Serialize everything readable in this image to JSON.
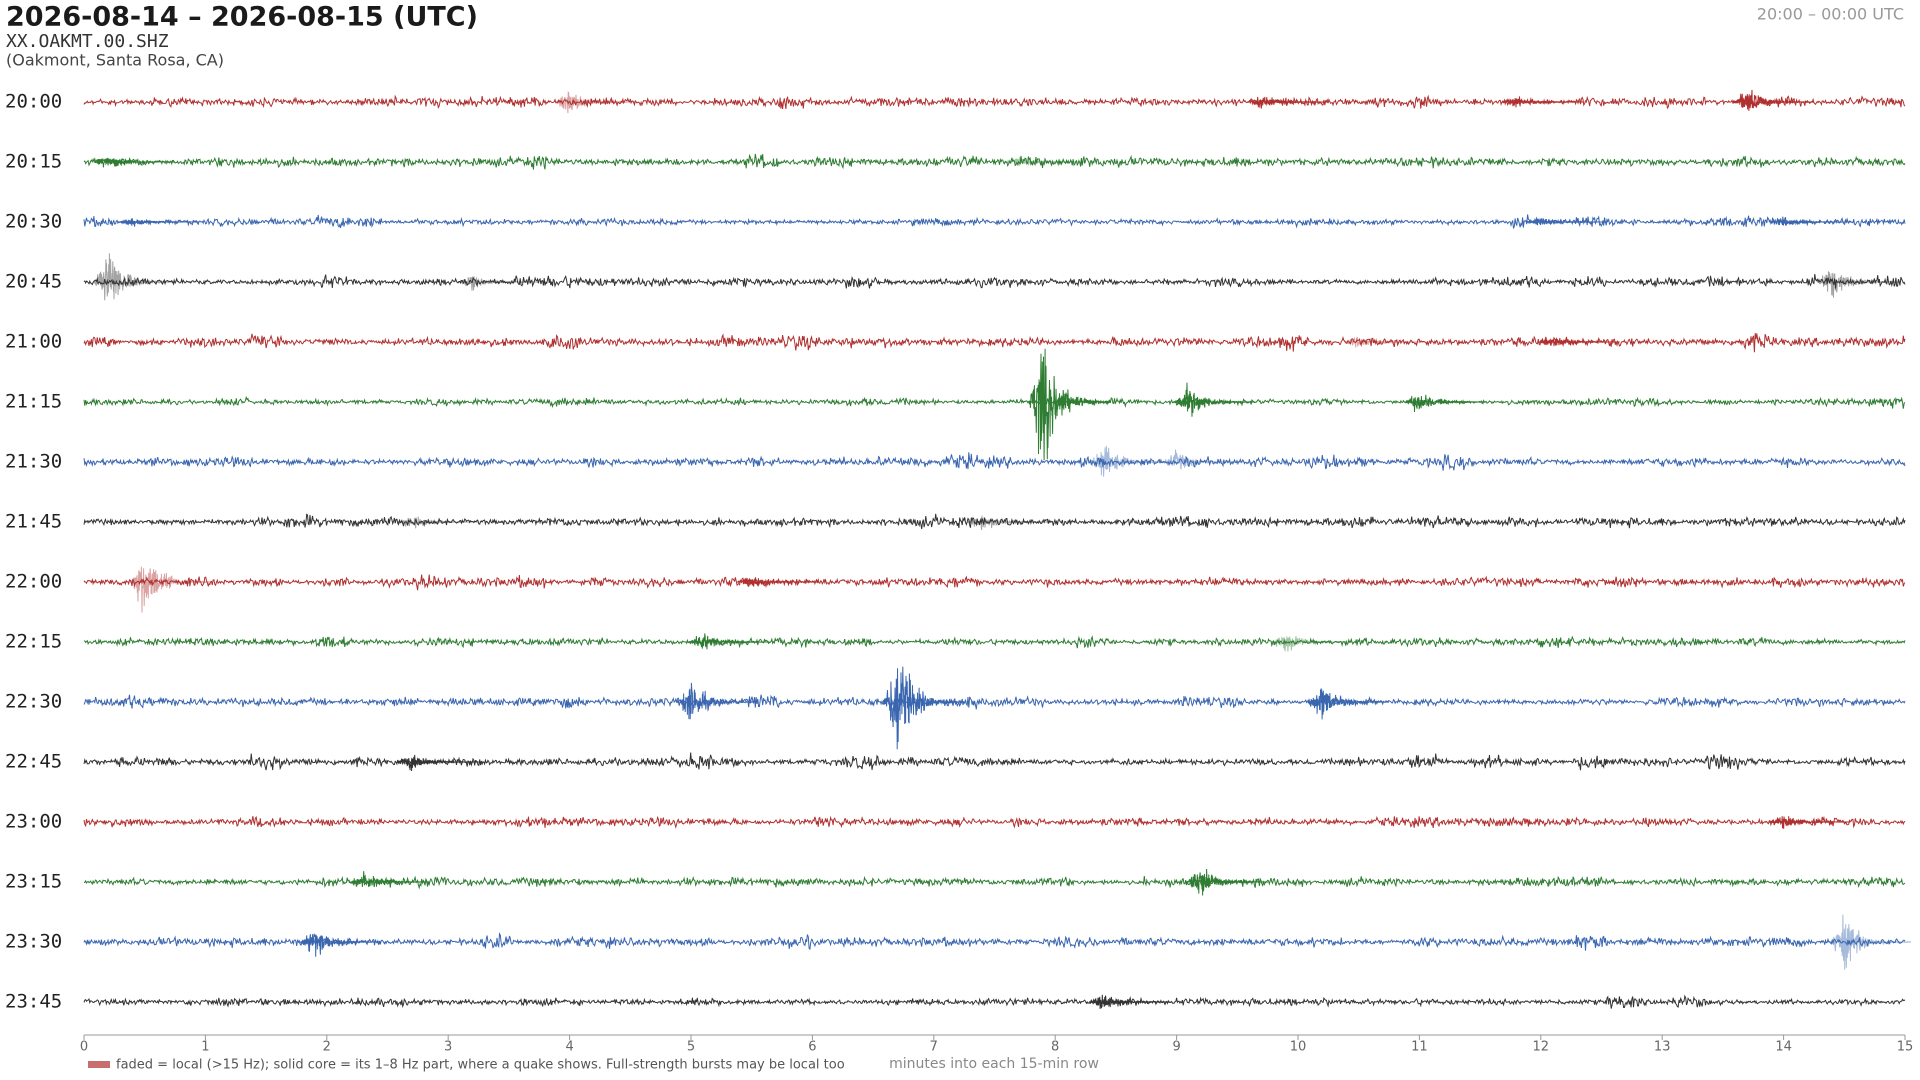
{
  "chart_data": {
    "type": "helicorder",
    "title": "2026-08-14 – 2026-08-15  (UTC)",
    "station": "XX.OAKMT.00.SHZ",
    "location": "(Oakmont, Santa Rosa, CA)",
    "time_range": "20:00 – 00:00 UTC",
    "x_label": "minutes into each 15-min row",
    "legend_note": "faded = local (>15 Hz); solid core = its 1–8 Hz part, where a quake shows. Full-strength bursts may be local too",
    "rows": [
      "20:00",
      "20:15",
      "20:30",
      "20:45",
      "21:00",
      "21:15",
      "21:30",
      "21:45",
      "22:00",
      "22:15",
      "22:30",
      "22:45",
      "23:00",
      "23:15",
      "23:30",
      "23:45"
    ],
    "colors": [
      "#b03030",
      "#2e7d32",
      "#3a66b0",
      "#333333"
    ],
    "xlim": [
      0,
      15
    ],
    "xticks": [
      0,
      1,
      2,
      3,
      4,
      5,
      6,
      7,
      8,
      9,
      10,
      11,
      12,
      13,
      14,
      15
    ],
    "events": [
      {
        "row": 0,
        "x": 4.0,
        "amplitude": 0.35,
        "local": true
      },
      {
        "row": 0,
        "x": 13.7,
        "amplitude": 0.4,
        "local": false
      },
      {
        "row": 0,
        "x": 9.7,
        "amplitude": 0.2,
        "local": false
      },
      {
        "row": 0,
        "x": 11.8,
        "amplitude": 0.15,
        "local": false
      },
      {
        "row": 1,
        "x": 0.2,
        "amplitude": 0.2,
        "local": false
      },
      {
        "row": 1,
        "x": 7.7,
        "amplitude": 0.15,
        "local": true
      },
      {
        "row": 2,
        "x": 0.4,
        "amplitude": 0.12,
        "local": false
      },
      {
        "row": 2,
        "x": 12.0,
        "amplitude": 0.12,
        "local": false
      },
      {
        "row": 2,
        "x": 14.0,
        "amplitude": 0.15,
        "local": false
      },
      {
        "row": 3,
        "x": 0.2,
        "amplitude": 0.9,
        "local": true
      },
      {
        "row": 3,
        "x": 3.2,
        "amplitude": 0.2,
        "local": true
      },
      {
        "row": 3,
        "x": 14.4,
        "amplitude": 0.5,
        "local": true
      },
      {
        "row": 4,
        "x": 10.5,
        "amplitude": 0.15,
        "local": true
      },
      {
        "row": 4,
        "x": 12.1,
        "amplitude": 0.15,
        "local": false
      },
      {
        "row": 5,
        "x": 7.9,
        "amplitude": 1.7,
        "local": false
      },
      {
        "row": 5,
        "x": 9.1,
        "amplitude": 0.5,
        "local": false
      },
      {
        "row": 5,
        "x": 11.0,
        "amplitude": 0.3,
        "local": false
      },
      {
        "row": 6,
        "x": 8.4,
        "amplitude": 0.5,
        "local": true
      },
      {
        "row": 6,
        "x": 9.0,
        "amplitude": 0.3,
        "local": true
      },
      {
        "row": 7,
        "x": 7.4,
        "amplitude": 0.25,
        "local": true
      },
      {
        "row": 7,
        "x": 2.7,
        "amplitude": 0.2,
        "local": true
      },
      {
        "row": 8,
        "x": 0.5,
        "amplitude": 0.9,
        "local": true
      },
      {
        "row": 8,
        "x": 5.5,
        "amplitude": 0.2,
        "local": false
      },
      {
        "row": 9,
        "x": 9.9,
        "amplitude": 0.3,
        "local": true
      },
      {
        "row": 9,
        "x": 5.1,
        "amplitude": 0.25,
        "local": false
      },
      {
        "row": 10,
        "x": 6.7,
        "amplitude": 1.45,
        "local": false
      },
      {
        "row": 10,
        "x": 5.0,
        "amplitude": 0.6,
        "local": false
      },
      {
        "row": 10,
        "x": 10.2,
        "amplitude": 0.5,
        "local": false
      },
      {
        "row": 11,
        "x": 2.7,
        "amplitude": 0.25,
        "local": false
      },
      {
        "row": 12,
        "x": 14.0,
        "amplitude": 0.2,
        "local": false
      },
      {
        "row": 13,
        "x": 9.2,
        "amplitude": 0.5,
        "local": false
      },
      {
        "row": 13,
        "x": 2.3,
        "amplitude": 0.3,
        "local": false
      },
      {
        "row": 14,
        "x": 14.5,
        "amplitude": 0.75,
        "local": true
      },
      {
        "row": 14,
        "x": 1.9,
        "amplitude": 0.4,
        "local": false
      },
      {
        "row": 15,
        "x": 8.4,
        "amplitude": 0.25,
        "local": false
      }
    ]
  }
}
